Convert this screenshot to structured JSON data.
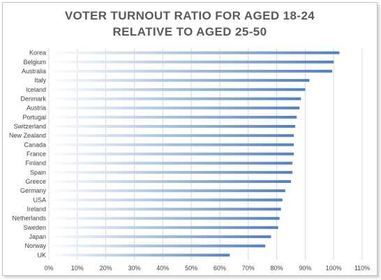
{
  "chart_data": {
    "type": "bar",
    "orientation": "horizontal",
    "title_lines": [
      "VOTER TURNOUT RATIO FOR AGED 18-24",
      "RELATIVE TO AGED 25-50"
    ],
    "categories": [
      "Korea",
      "Belgium",
      "Australia",
      "Italy",
      "Iceland",
      "Denmark",
      "Austria",
      "Portugal",
      "Switzerland",
      "New Zealand",
      "Canada",
      "France",
      "Finland",
      "Spain",
      "Greece",
      "Germany",
      "USA",
      "Ireland",
      "Netherlands",
      "Sweden",
      "Japan",
      "Norway",
      "UK"
    ],
    "values": [
      102,
      100,
      99.5,
      91.5,
      90,
      88.5,
      88,
      87,
      86.5,
      86,
      86,
      86,
      85.5,
      85.5,
      85,
      83,
      82,
      81.5,
      81,
      80.5,
      78,
      76,
      63.5
    ],
    "xlim": [
      0,
      110
    ],
    "xticks": [
      "0%",
      "10%",
      "20%",
      "30%",
      "40%",
      "50%",
      "60%",
      "70%",
      "80%",
      "90%",
      "100%",
      "110%"
    ],
    "bar_color": "#4f81bd",
    "grid": "vertical"
  }
}
